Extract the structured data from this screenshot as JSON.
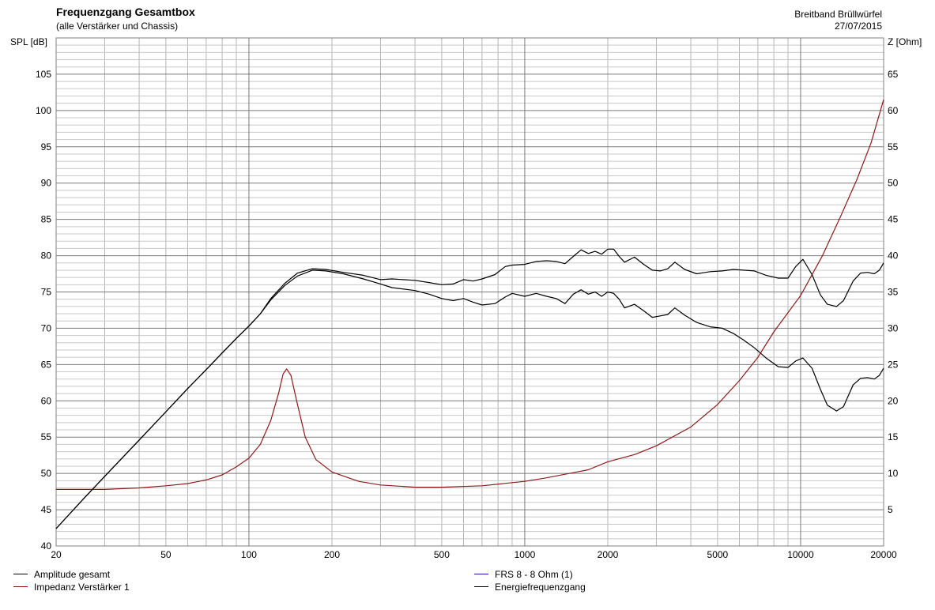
{
  "header": {
    "title": "Frequenzgang Gesamtbox",
    "subtitle": "(alle Verstärker und Chassis)",
    "project": "Breitband Brüllwürfel",
    "date": "27/07/2015"
  },
  "chart_data": {
    "type": "line",
    "title": "Frequenzgang Gesamtbox",
    "subtitle": "(alle Verstärker und Chassis)",
    "xscale": "log",
    "xlim": [
      20,
      20000
    ],
    "xticks": [
      20,
      50,
      100,
      200,
      500,
      1000,
      2000,
      5000,
      10000,
      20000
    ],
    "ylabel": "SPL [dB]",
    "ylim": [
      40,
      110
    ],
    "yticks": [
      40,
      45,
      50,
      55,
      60,
      65,
      70,
      75,
      80,
      85,
      90,
      95,
      100,
      105
    ],
    "y2label": "Z [Ohm]",
    "y2lim": [
      0,
      70
    ],
    "y2ticks": [
      5,
      10,
      15,
      20,
      25,
      30,
      35,
      40,
      45,
      50,
      55,
      60,
      65
    ],
    "grid": true,
    "legend_position": "bottom",
    "series": [
      {
        "name": "Amplitude gesamt",
        "axis": "left",
        "color": "#000000",
        "points": [
          [
            20,
            42.4
          ],
          [
            25,
            46.4
          ],
          [
            30,
            49.6
          ],
          [
            40,
            54.6
          ],
          [
            50,
            58.5
          ],
          [
            60,
            61.7
          ],
          [
            70,
            64.3
          ],
          [
            80,
            66.6
          ],
          [
            90,
            68.6
          ],
          [
            100,
            70.3
          ],
          [
            110,
            72.0
          ],
          [
            120,
            73.9
          ],
          [
            135,
            75.9
          ],
          [
            150,
            77.2
          ],
          [
            170,
            78.0
          ],
          [
            190,
            77.9
          ],
          [
            220,
            77.5
          ],
          [
            260,
            76.8
          ],
          [
            300,
            76.1
          ],
          [
            330,
            75.6
          ],
          [
            400,
            75.2
          ],
          [
            450,
            74.7
          ],
          [
            500,
            74.1
          ],
          [
            550,
            73.8
          ],
          [
            600,
            74.1
          ],
          [
            650,
            73.6
          ],
          [
            700,
            73.2
          ],
          [
            780,
            73.4
          ],
          [
            850,
            74.3
          ],
          [
            900,
            74.8
          ],
          [
            1000,
            74.4
          ],
          [
            1100,
            74.8
          ],
          [
            1200,
            74.4
          ],
          [
            1300,
            74.1
          ],
          [
            1400,
            73.4
          ],
          [
            1500,
            74.7
          ],
          [
            1600,
            75.3
          ],
          [
            1700,
            74.7
          ],
          [
            1800,
            75.0
          ],
          [
            1900,
            74.4
          ],
          [
            2000,
            75.0
          ],
          [
            2100,
            74.8
          ],
          [
            2200,
            74.0
          ],
          [
            2300,
            72.8
          ],
          [
            2500,
            73.3
          ],
          [
            2700,
            72.4
          ],
          [
            2900,
            71.5
          ],
          [
            3100,
            71.7
          ],
          [
            3300,
            71.9
          ],
          [
            3500,
            72.8
          ],
          [
            3800,
            71.8
          ],
          [
            4200,
            70.8
          ],
          [
            4700,
            70.2
          ],
          [
            5200,
            70.0
          ],
          [
            5700,
            69.3
          ],
          [
            6200,
            68.4
          ],
          [
            6800,
            67.3
          ],
          [
            7500,
            65.9
          ],
          [
            8300,
            64.7
          ],
          [
            9000,
            64.6
          ],
          [
            9600,
            65.5
          ],
          [
            10200,
            65.9
          ],
          [
            11000,
            64.5
          ],
          [
            11800,
            61.6
          ],
          [
            12500,
            59.4
          ],
          [
            13500,
            58.6
          ],
          [
            14300,
            59.2
          ],
          [
            15500,
            62.2
          ],
          [
            16500,
            63.1
          ],
          [
            17500,
            63.2
          ],
          [
            18500,
            63.0
          ],
          [
            19300,
            63.5
          ],
          [
            20000,
            64.5
          ]
        ]
      },
      {
        "name": "FRS 8 - 8 Ohm (1)",
        "axis": "left",
        "color": "#1414b4",
        "points": []
      },
      {
        "name": "Impedanz Verstärker 1",
        "axis": "right",
        "color": "#8b1a1a",
        "points": [
          [
            20,
            7.8
          ],
          [
            30,
            7.8
          ],
          [
            40,
            8.0
          ],
          [
            50,
            8.3
          ],
          [
            60,
            8.6
          ],
          [
            70,
            9.1
          ],
          [
            80,
            9.8
          ],
          [
            90,
            10.9
          ],
          [
            100,
            12.1
          ],
          [
            110,
            14.0
          ],
          [
            120,
            17.3
          ],
          [
            128,
            21.0
          ],
          [
            133,
            23.7
          ],
          [
            137,
            24.4
          ],
          [
            142,
            23.5
          ],
          [
            150,
            19.5
          ],
          [
            160,
            15.0
          ],
          [
            175,
            11.9
          ],
          [
            200,
            10.2
          ],
          [
            250,
            8.9
          ],
          [
            300,
            8.4
          ],
          [
            400,
            8.1
          ],
          [
            500,
            8.1
          ],
          [
            700,
            8.3
          ],
          [
            1000,
            8.9
          ],
          [
            1200,
            9.4
          ],
          [
            1500,
            10.1
          ],
          [
            1700,
            10.5
          ],
          [
            2000,
            11.6
          ],
          [
            2500,
            12.6
          ],
          [
            3000,
            13.8
          ],
          [
            4000,
            16.4
          ],
          [
            5000,
            19.5
          ],
          [
            6000,
            22.8
          ],
          [
            7000,
            26.0
          ],
          [
            8000,
            29.5
          ],
          [
            10000,
            34.5
          ],
          [
            12000,
            40.0
          ],
          [
            14000,
            45.5
          ],
          [
            16000,
            50.5
          ],
          [
            18000,
            55.5
          ],
          [
            20000,
            61.5
          ]
        ]
      },
      {
        "name": "Energiefrequenzgang",
        "axis": "left",
        "color": "#000000",
        "points": [
          [
            20,
            42.4
          ],
          [
            25,
            46.4
          ],
          [
            30,
            49.6
          ],
          [
            40,
            54.6
          ],
          [
            50,
            58.5
          ],
          [
            60,
            61.7
          ],
          [
            70,
            64.3
          ],
          [
            80,
            66.6
          ],
          [
            90,
            68.6
          ],
          [
            100,
            70.3
          ],
          [
            110,
            72.0
          ],
          [
            120,
            74.1
          ],
          [
            135,
            76.2
          ],
          [
            150,
            77.6
          ],
          [
            170,
            78.2
          ],
          [
            190,
            78.1
          ],
          [
            220,
            77.7
          ],
          [
            260,
            77.3
          ],
          [
            300,
            76.7
          ],
          [
            330,
            76.8
          ],
          [
            400,
            76.6
          ],
          [
            450,
            76.3
          ],
          [
            500,
            76.0
          ],
          [
            550,
            76.1
          ],
          [
            600,
            76.7
          ],
          [
            650,
            76.5
          ],
          [
            700,
            76.8
          ],
          [
            780,
            77.4
          ],
          [
            850,
            78.5
          ],
          [
            900,
            78.7
          ],
          [
            1000,
            78.8
          ],
          [
            1100,
            79.2
          ],
          [
            1200,
            79.3
          ],
          [
            1300,
            79.2
          ],
          [
            1400,
            78.9
          ],
          [
            1500,
            79.9
          ],
          [
            1600,
            80.8
          ],
          [
            1700,
            80.3
          ],
          [
            1800,
            80.6
          ],
          [
            1900,
            80.2
          ],
          [
            2000,
            80.9
          ],
          [
            2100,
            80.9
          ],
          [
            2200,
            79.9
          ],
          [
            2300,
            79.1
          ],
          [
            2500,
            79.8
          ],
          [
            2700,
            78.8
          ],
          [
            2900,
            78.0
          ],
          [
            3100,
            77.9
          ],
          [
            3300,
            78.2
          ],
          [
            3500,
            79.1
          ],
          [
            3800,
            78.1
          ],
          [
            4200,
            77.5
          ],
          [
            4700,
            77.8
          ],
          [
            5200,
            77.9
          ],
          [
            5700,
            78.1
          ],
          [
            6200,
            78.0
          ],
          [
            6800,
            77.9
          ],
          [
            7500,
            77.3
          ],
          [
            8300,
            76.9
          ],
          [
            9000,
            76.9
          ],
          [
            9600,
            78.5
          ],
          [
            10200,
            79.5
          ],
          [
            11000,
            77.4
          ],
          [
            11800,
            74.6
          ],
          [
            12500,
            73.3
          ],
          [
            13500,
            73.0
          ],
          [
            14300,
            73.8
          ],
          [
            15500,
            76.5
          ],
          [
            16500,
            77.6
          ],
          [
            17500,
            77.7
          ],
          [
            18500,
            77.5
          ],
          [
            19300,
            78.0
          ],
          [
            20000,
            79.0
          ]
        ]
      }
    ]
  }
}
